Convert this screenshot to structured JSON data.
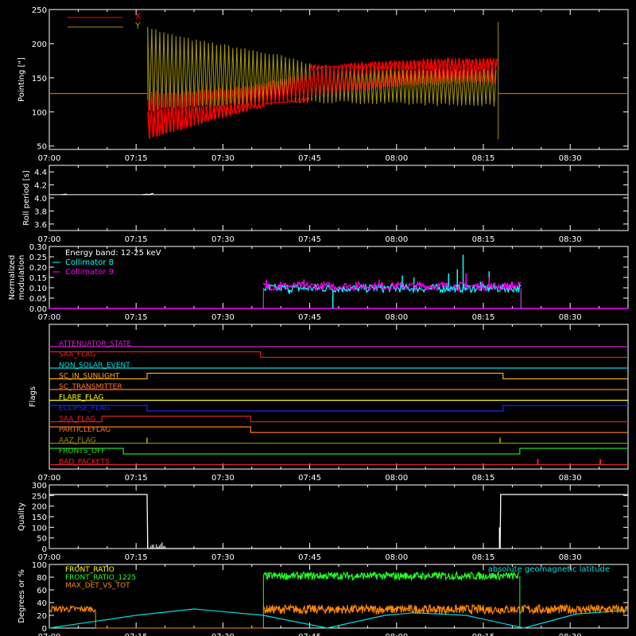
{
  "time_axis": {
    "tick_labels": [
      "07:00",
      "07:15",
      "07:30",
      "07:45",
      "08:00",
      "08:15",
      "08:30"
    ],
    "range_minutes": [
      0,
      100
    ]
  },
  "chart_data": [
    {
      "type": "line",
      "ylabel": "Pointing [\"]",
      "ylim": [
        45,
        250
      ],
      "yticks": [
        "50",
        "100",
        "150",
        "200",
        "250"
      ],
      "xlim_minutes": [
        0,
        100
      ],
      "legend_position": "top-left",
      "series": [
        {
          "name": "X",
          "color": "#ff0000",
          "x_minutes": [
            0,
            16.9,
            17.0,
            20,
            25,
            30,
            35,
            40,
            45,
            50,
            55,
            60,
            65,
            70,
            77.5,
            77.6,
            100
          ],
          "y_min": [
            127,
            127,
            60,
            68,
            80,
            92,
            104,
            115,
            122,
            128,
            133,
            137,
            140,
            142,
            143,
            127,
            127
          ],
          "y_max": [
            127,
            127,
            130,
            128,
            130,
            133,
            138,
            148,
            160,
            168,
            172,
            175,
            177,
            178,
            178,
            127,
            127
          ]
        },
        {
          "name": "Y",
          "color": "#a09000",
          "x_minutes": [
            0,
            16.9,
            17.0,
            20,
            25,
            30,
            35,
            40,
            45,
            50,
            55,
            60,
            65,
            70,
            77.5,
            77.6,
            100
          ],
          "y_min": [
            127,
            127,
            100,
            106,
            108,
            110,
            112,
            114,
            114,
            114,
            113,
            112,
            111,
            110,
            109,
            127,
            127
          ],
          "y_max": [
            127,
            127,
            225,
            215,
            205,
            198,
            190,
            182,
            170,
            165,
            163,
            162,
            162,
            161,
            161,
            127,
            127
          ]
        }
      ]
    },
    {
      "type": "line",
      "ylabel": "Roll period [s]",
      "ylim": [
        3.5,
        4.5
      ],
      "yticks": [
        "3.6",
        "3.8",
        "4.0",
        "4.2",
        "4.4"
      ],
      "series": [
        {
          "name": "",
          "color": "#ffffff",
          "x_minutes": [
            0,
            100
          ],
          "y": [
            4.05,
            4.05
          ]
        }
      ]
    },
    {
      "type": "bar",
      "ylabel": "Normalized modulation",
      "ylim": [
        0,
        0.3
      ],
      "yticks": [
        "0.00",
        "0.05",
        "0.10",
        "0.15",
        "0.20",
        "0.25",
        "0.30"
      ],
      "annotation": "Energy band: 12-25 keV",
      "series": [
        {
          "name": "Collimator 8",
          "color": "#00ffff",
          "x_range_minutes": [
            37,
            81.5
          ],
          "baseline": 0.09,
          "spikes": [
            [
              38,
              0.12
            ],
            [
              41.5,
              0.07
            ],
            [
              44,
              0.14
            ],
            [
              49,
              0.0
            ],
            [
              53,
              0.11
            ],
            [
              61,
              0.16
            ],
            [
              63,
              0.15
            ],
            [
              66,
              0.11
            ],
            [
              69,
              0.17
            ],
            [
              70.5,
              0.19
            ],
            [
              71.5,
              0.26
            ],
            [
              72,
              0.13
            ],
            [
              74.5,
              0.13
            ],
            [
              76,
              0.18
            ]
          ]
        },
        {
          "name": "Collimator 9",
          "color": "#ff00ff",
          "x_range_minutes": [
            37,
            81.5
          ],
          "baseline": 0.1,
          "spikes": [
            [
              37.5,
              0.14
            ],
            [
              40,
              0.13
            ],
            [
              44,
              0.14
            ],
            [
              47,
              0.12
            ],
            [
              53,
              0.13
            ],
            [
              57,
              0.14
            ],
            [
              60,
              0.12
            ],
            [
              64,
              0.13
            ],
            [
              68,
              0.13
            ],
            [
              72,
              0.17
            ],
            [
              76,
              0.15
            ],
            [
              80,
              0.13
            ]
          ]
        }
      ]
    },
    {
      "type": "line",
      "ylabel": "Flags",
      "flags": [
        {
          "name": "ATTENUATOR_STATE",
          "color": "#cc22cc",
          "transitions_minutes": [],
          "initial": 0
        },
        {
          "name": "SAA_FLAG",
          "color": "#dd2222",
          "transitions_minutes": [
            36.5
          ],
          "initial": 1
        },
        {
          "name": "NON_SOLAR_EVENT",
          "color": "#00dddd",
          "transitions_minutes": [],
          "initial": 0
        },
        {
          "name": "SC_IN_SUNLIGHT",
          "color": "#ffaa00",
          "transitions_minutes": [
            16.9,
            78.4
          ],
          "initial": 0
        },
        {
          "name": "SC_TRANSMITTER",
          "color": "#ff7722",
          "transitions_minutes": [],
          "initial": 0
        },
        {
          "name": "FLARE_FLAG",
          "color": "#ffff00",
          "transitions_minutes": [],
          "initial": 0
        },
        {
          "name": "ECLIPSE_FLAG",
          "color": "#2222ff",
          "transitions_minutes": [
            16.9,
            78.4
          ],
          "initial": 1
        },
        {
          "name": "SAA_FLAG",
          "color": "#dd2222",
          "transitions_minutes": [
            9.1,
            34.8
          ],
          "initial": 0
        },
        {
          "name": "PARTICLEFLAG",
          "color": "#ff7722",
          "transitions_minutes": [
            34.8
          ],
          "initial": 1
        },
        {
          "name": "AAZ_FLAG",
          "color": "#998800",
          "pulses_minutes": [
            16.9,
            77.9
          ],
          "initial": 0
        },
        {
          "name": "FRONTS_OFF",
          "color": "#22dd22",
          "transitions_minutes": [
            12.8,
            81.3
          ],
          "initial": 1
        },
        {
          "name": "BAD_PACKETS",
          "color": "#ee2222",
          "pulses_minutes": [
            84.4,
            95.2
          ],
          "initial": 0
        }
      ]
    },
    {
      "type": "line",
      "ylabel": "Quality",
      "ylim": [
        0,
        300
      ],
      "yticks": [
        "0",
        "50",
        "100",
        "150",
        "200",
        "250",
        "300"
      ],
      "series": [
        {
          "name": "",
          "color": "#ffffff",
          "x_minutes": [
            0,
            16.9,
            17.0,
            77.9,
            78.0,
            100
          ],
          "y": [
            255,
            255,
            0,
            0,
            255,
            255
          ]
        }
      ]
    },
    {
      "type": "line",
      "ylabel": "Degrees or %",
      "ylim": [
        0,
        100
      ],
      "yticks": [
        "0",
        "20",
        "40",
        "60",
        "80",
        "100"
      ],
      "series": [
        {
          "name": "FRONT_RATIO",
          "color": "#ffff00",
          "x_minutes": [
            0,
            100
          ],
          "y": [
            0,
            0
          ]
        },
        {
          "name": "FRONT_RATIO_1225",
          "color": "#22ff22",
          "x_minutes": [
            0,
            36.9,
            37.0,
            81.2,
            81.3,
            100
          ],
          "y": [
            0,
            0,
            82,
            82,
            0,
            0
          ]
        },
        {
          "name": "MAX_DET_VS_TOT",
          "color": "#ff8800",
          "x_minutes": [
            0,
            8,
            8.1,
            37,
            37.1,
            100
          ],
          "y": [
            30,
            30,
            0,
            0,
            28,
            28
          ]
        },
        {
          "name": "absolute geomagnetic latitude",
          "color": "#00dddd",
          "x_minutes": [
            0,
            15,
            25,
            37,
            48,
            58,
            63,
            72,
            82,
            91,
            100
          ],
          "y": [
            0,
            20,
            30,
            20,
            0,
            20,
            24,
            20,
            0,
            22,
            28
          ]
        }
      ]
    }
  ]
}
